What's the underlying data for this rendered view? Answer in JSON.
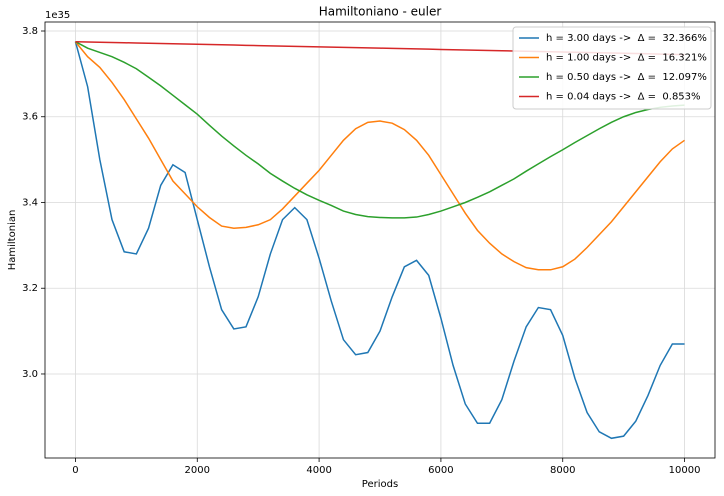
{
  "chart_data": {
    "type": "line",
    "title": "Hamiltoniano - euler",
    "x_label": "Periods",
    "y_label": "Hamiltonian",
    "y_offset_label": "1e35",
    "x": [
      0,
      200,
      400,
      600,
      800,
      1000,
      1200,
      1400,
      1600,
      1800,
      2000,
      2200,
      2400,
      2600,
      2800,
      3000,
      3200,
      3400,
      3600,
      3800,
      4000,
      4200,
      4400,
      4600,
      4800,
      5000,
      5200,
      5400,
      5600,
      5800,
      6000,
      6200,
      6400,
      6600,
      6800,
      7000,
      7200,
      7400,
      7600,
      7800,
      8000,
      8200,
      8400,
      8600,
      8800,
      9000,
      9200,
      9400,
      9600,
      9800,
      10000
    ],
    "series": [
      {
        "name": "h = 3.00 days ->  Δ =  32.366%",
        "color": "#1f77b4",
        "values": [
          3.775,
          3.67,
          3.5,
          3.36,
          3.285,
          3.28,
          3.34,
          3.44,
          3.488,
          3.47,
          3.36,
          3.25,
          3.15,
          3.105,
          3.11,
          3.18,
          3.28,
          3.36,
          3.388,
          3.36,
          3.27,
          3.17,
          3.08,
          3.045,
          3.05,
          3.1,
          3.18,
          3.25,
          3.265,
          3.23,
          3.13,
          3.02,
          2.93,
          2.885,
          2.885,
          2.94,
          3.03,
          3.11,
          3.155,
          3.15,
          3.09,
          2.99,
          2.91,
          2.865,
          2.85,
          2.855,
          2.89,
          2.95,
          3.02,
          3.07,
          3.07
        ]
      },
      {
        "name": "h = 1.00 days ->  Δ =  16.321%",
        "color": "#ff7f0e",
        "values": [
          3.775,
          3.74,
          3.715,
          3.68,
          3.64,
          3.595,
          3.55,
          3.5,
          3.45,
          3.42,
          3.39,
          3.365,
          3.345,
          3.34,
          3.342,
          3.348,
          3.36,
          3.385,
          3.415,
          3.445,
          3.475,
          3.51,
          3.545,
          3.572,
          3.587,
          3.59,
          3.585,
          3.57,
          3.545,
          3.51,
          3.465,
          3.42,
          3.375,
          3.335,
          3.305,
          3.28,
          3.262,
          3.248,
          3.243,
          3.243,
          3.25,
          3.268,
          3.295,
          3.325,
          3.355,
          3.39,
          3.425,
          3.46,
          3.495,
          3.525,
          3.545
        ]
      },
      {
        "name": "h = 0.50 days ->  Δ =  12.097%",
        "color": "#2ca02c",
        "values": [
          3.775,
          3.76,
          3.75,
          3.74,
          3.727,
          3.712,
          3.692,
          3.672,
          3.65,
          3.628,
          3.606,
          3.58,
          3.555,
          3.532,
          3.51,
          3.49,
          3.468,
          3.45,
          3.433,
          3.418,
          3.405,
          3.393,
          3.38,
          3.372,
          3.367,
          3.365,
          3.364,
          3.364,
          3.366,
          3.372,
          3.38,
          3.39,
          3.4,
          3.412,
          3.425,
          3.44,
          3.455,
          3.473,
          3.49,
          3.507,
          3.523,
          3.54,
          3.556,
          3.572,
          3.587,
          3.6,
          3.61,
          3.617,
          3.622,
          3.625,
          3.627
        ]
      },
      {
        "name": "h = 0.04 days ->  Δ =  0.853%",
        "color": "#d62728",
        "values": [
          3.775,
          3.7744,
          3.7738,
          3.7732,
          3.7726,
          3.772,
          3.7714,
          3.7708,
          3.7702,
          3.7696,
          3.769,
          3.7684,
          3.7678,
          3.7672,
          3.7666,
          3.766,
          3.7654,
          3.7648,
          3.7642,
          3.7636,
          3.763,
          3.7624,
          3.7618,
          3.7612,
          3.7606,
          3.76,
          3.7594,
          3.7588,
          3.7582,
          3.7576,
          3.757,
          3.7564,
          3.7558,
          3.7552,
          3.7546,
          3.754,
          3.7534,
          3.7528,
          3.7522,
          3.7516,
          3.751,
          3.7504,
          3.7498,
          3.7492,
          3.7486,
          3.748,
          3.7474,
          3.7468,
          3.7462,
          3.7456,
          3.745
        ]
      }
    ],
    "xlim": [
      -500,
      10500
    ],
    "ylim": [
      2.804,
      3.821
    ],
    "xticks": [
      0,
      2000,
      4000,
      6000,
      8000,
      10000
    ],
    "yticks": [
      {
        "value": 3.0,
        "label": "3.0"
      },
      {
        "value": 3.2,
        "label": "3.2"
      },
      {
        "value": 3.4,
        "label": "3.4"
      },
      {
        "value": 3.6,
        "label": "3.6"
      },
      {
        "value": 3.8,
        "label": "3.8"
      }
    ],
    "grid": true,
    "legend": "upper right"
  }
}
